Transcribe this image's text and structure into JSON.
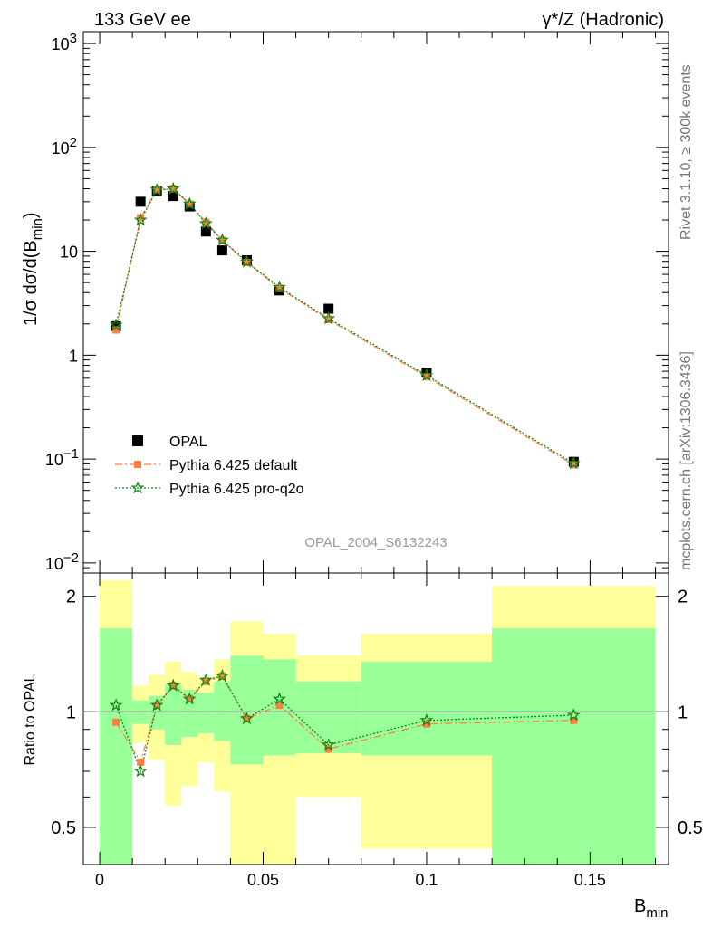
{
  "header": {
    "left": "133 GeV ee",
    "right_main": "γ*/Z (Hadronic)"
  },
  "side": {
    "rivet": "Rivet 3.1.10, ≥ 300k events",
    "mcplots": "mcplots.cern.ch [arXiv:1306.3436]"
  },
  "watermark": "OPAL_2004_S6132243",
  "colors": {
    "data": "#000000",
    "pythia_default": "#ff7f3f",
    "pythia_proq2o": "#118811",
    "band_outer": "#ffff99",
    "band_inner": "#99ff99"
  },
  "chart_data": [
    {
      "type": "scatter",
      "panel": "main",
      "ylabel": "1/σ dσ/d(B_min)",
      "yscale": "log",
      "ylim": [
        0.008,
        1300
      ],
      "xlim": [
        -0.005,
        0.174
      ],
      "ytick_labels": [
        "10^-2",
        "10^-1",
        "1",
        "10",
        "10^2",
        "10^3"
      ],
      "legend_position": "lower-left",
      "series": [
        {
          "name": "OPAL",
          "marker": "square",
          "x": [
            0.005,
            0.0125,
            0.0175,
            0.0225,
            0.0275,
            0.0325,
            0.0375,
            0.045,
            0.055,
            0.07,
            0.1,
            0.145
          ],
          "y": [
            1.9,
            30,
            38,
            34,
            27,
            15.5,
            10.2,
            8.2,
            4.2,
            2.8,
            0.68,
            0.094
          ]
        },
        {
          "name": "Pythia 6.425 default",
          "marker": "circle",
          "line": "dashdot",
          "x": [
            0.005,
            0.0125,
            0.0175,
            0.0225,
            0.0275,
            0.0325,
            0.0375,
            0.045,
            0.055,
            0.07,
            0.1,
            0.145
          ],
          "y": [
            1.75,
            21,
            39,
            40,
            28.5,
            19,
            12.8,
            7.8,
            4.4,
            2.2,
            0.62,
            0.088
          ]
        },
        {
          "name": "Pythia 6.425 pro-q2o",
          "marker": "star",
          "line": "dotted",
          "x": [
            0.005,
            0.0125,
            0.0175,
            0.0225,
            0.0275,
            0.0325,
            0.0375,
            0.045,
            0.055,
            0.07,
            0.1,
            0.145
          ],
          "y": [
            1.95,
            20,
            39,
            40,
            28.5,
            18.5,
            12.8,
            7.9,
            4.5,
            2.25,
            0.64,
            0.091
          ]
        }
      ]
    },
    {
      "type": "line",
      "panel": "ratio",
      "ylabel": "Ratio to OPAL",
      "xlabel": "B_min",
      "yscale": "log",
      "ylim": [
        0.4,
        2.3
      ],
      "xlim": [
        -0.005,
        0.174
      ],
      "xtick_labels": [
        "0",
        "0.05",
        "0.1",
        "0.15"
      ],
      "ytick_labels": [
        "0.5",
        "1",
        "2"
      ],
      "reference_line": 1,
      "bins": [
        {
          "xlo": 0.0,
          "xhi": 0.01,
          "inner": [
            0.35,
            1.65
          ],
          "outer": [
            0.35,
            2.2
          ]
        },
        {
          "xlo": 0.01,
          "xhi": 0.015,
          "inner": [
            0.93,
            1.07
          ],
          "outer": [
            0.83,
            1.17
          ]
        },
        {
          "xlo": 0.015,
          "xhi": 0.02,
          "inner": [
            0.9,
            1.1
          ],
          "outer": [
            0.75,
            1.25
          ]
        },
        {
          "xlo": 0.02,
          "xhi": 0.025,
          "inner": [
            0.82,
            1.18
          ],
          "outer": [
            0.57,
            1.35
          ]
        },
        {
          "xlo": 0.025,
          "xhi": 0.03,
          "inner": [
            0.86,
            1.14
          ],
          "outer": [
            0.64,
            1.27
          ]
        },
        {
          "xlo": 0.03,
          "xhi": 0.035,
          "inner": [
            0.88,
            1.12
          ],
          "outer": [
            0.74,
            1.22
          ]
        },
        {
          "xlo": 0.035,
          "xhi": 0.04,
          "inner": [
            0.84,
            1.2
          ],
          "outer": [
            0.62,
            1.37
          ]
        },
        {
          "xlo": 0.04,
          "xhi": 0.05,
          "inner": [
            0.73,
            1.4
          ],
          "outer": [
            0.4,
            1.72
          ]
        },
        {
          "xlo": 0.05,
          "xhi": 0.06,
          "inner": [
            0.77,
            1.37
          ],
          "outer": [
            0.4,
            1.6
          ]
        },
        {
          "xlo": 0.06,
          "xhi": 0.08,
          "inner": [
            0.78,
            1.2
          ],
          "outer": [
            0.6,
            1.4
          ]
        },
        {
          "xlo": 0.08,
          "xhi": 0.12,
          "inner": [
            0.77,
            1.35
          ],
          "outer": [
            0.44,
            1.6
          ]
        },
        {
          "xlo": 0.12,
          "xhi": 0.17,
          "inner": [
            0.37,
            1.65
          ],
          "outer": [
            0.37,
            2.13
          ]
        }
      ],
      "series": [
        {
          "name": "Pythia 6.425 default",
          "x": [
            0.005,
            0.0125,
            0.0175,
            0.0225,
            0.0275,
            0.0325,
            0.0375,
            0.045,
            0.055,
            0.07,
            0.1,
            0.145
          ],
          "y": [
            0.94,
            0.74,
            1.04,
            1.17,
            1.08,
            1.2,
            1.24,
            0.96,
            1.04,
            0.8,
            0.93,
            0.95
          ]
        },
        {
          "name": "Pythia 6.425 pro-q2o",
          "x": [
            0.005,
            0.0125,
            0.0175,
            0.0225,
            0.0275,
            0.0325,
            0.0375,
            0.045,
            0.055,
            0.07,
            0.1,
            0.145
          ],
          "y": [
            1.04,
            0.7,
            1.04,
            1.17,
            1.08,
            1.21,
            1.24,
            0.96,
            1.08,
            0.82,
            0.95,
            0.98
          ]
        }
      ]
    }
  ]
}
